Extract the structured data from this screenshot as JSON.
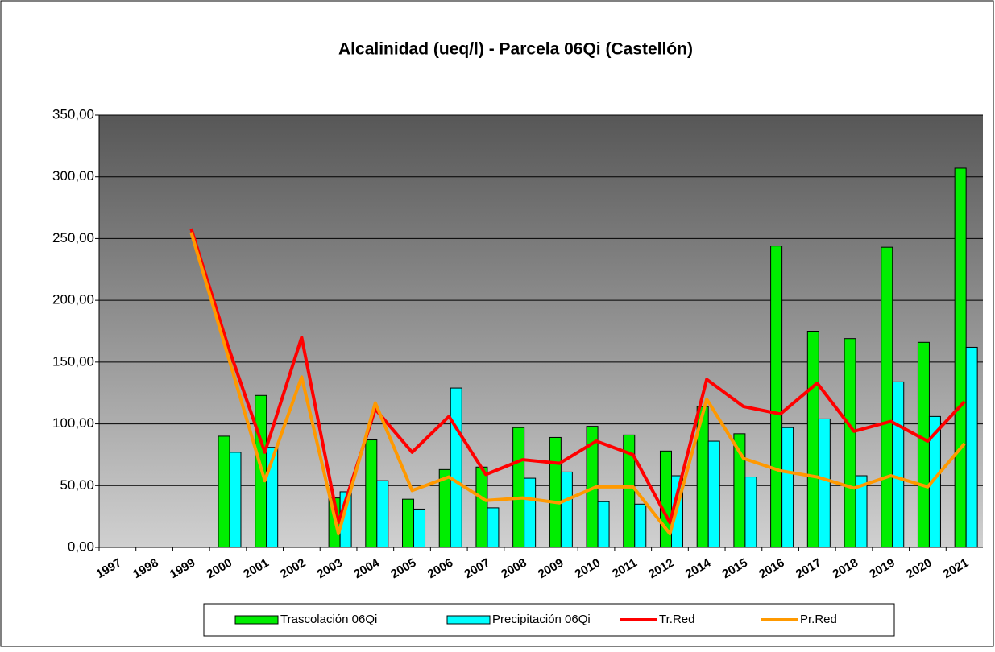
{
  "chart_data": {
    "type": "bar_line",
    "title": "Alcalinidad (ueq/l) - Parcela 06Qi (Castellón)",
    "categories": [
      "1997",
      "1998",
      "1999",
      "2000",
      "2001",
      "2002",
      "2003",
      "2004",
      "2005",
      "2006",
      "2007",
      "2008",
      "2009",
      "2010",
      "2011",
      "2012",
      "2014",
      "2015",
      "2016",
      "2017",
      "2018",
      "2019",
      "2020",
      "2021"
    ],
    "series": [
      {
        "name": "Trascolación  06Qi",
        "kind": "bar",
        "color": "#00ee00",
        "values": [
          null,
          null,
          null,
          90,
          123,
          null,
          40,
          87,
          39,
          63,
          65,
          97,
          89,
          98,
          91,
          78,
          114,
          92,
          244,
          175,
          169,
          243,
          166,
          307
        ]
      },
      {
        "name": "Precipitación 06Qi",
        "kind": "bar",
        "color": "#00ffff",
        "values": [
          null,
          null,
          null,
          77,
          81,
          null,
          45,
          54,
          31,
          129,
          32,
          56,
          61,
          37,
          35,
          58,
          86,
          57,
          97,
          104,
          58,
          134,
          106,
          162
        ]
      },
      {
        "name": "Tr.Red",
        "kind": "line",
        "color": "#ff0000",
        "values": [
          null,
          null,
          258,
          163,
          77,
          170,
          20,
          112,
          77,
          106,
          59,
          71,
          68,
          86,
          75,
          20,
          136,
          114,
          108,
          133,
          94,
          102,
          86,
          118
        ]
      },
      {
        "name": "Pr.Red",
        "kind": "line",
        "color": "#ff9900",
        "values": [
          null,
          null,
          255,
          155,
          54,
          138,
          11,
          117,
          46,
          57,
          38,
          40,
          36,
          49,
          49,
          11,
          120,
          72,
          62,
          57,
          48,
          58,
          49,
          84
        ]
      }
    ],
    "ylim": [
      0,
      350
    ],
    "yticks": [
      {
        "value": 0,
        "label": "0,00"
      },
      {
        "value": 50,
        "label": "50,00"
      },
      {
        "value": 100,
        "label": "100,00"
      },
      {
        "value": 150,
        "label": "150,00"
      },
      {
        "value": 200,
        "label": "200,00"
      },
      {
        "value": 250,
        "label": "250,00"
      },
      {
        "value": 300,
        "label": "300,00"
      },
      {
        "value": 350,
        "label": "350,00"
      }
    ],
    "grid": true,
    "legend": "bottom"
  }
}
